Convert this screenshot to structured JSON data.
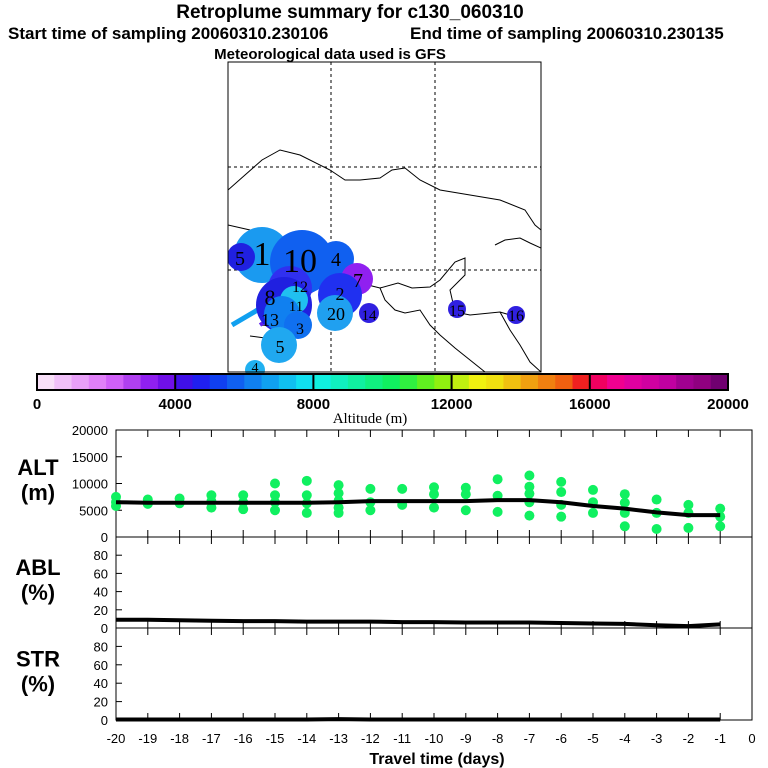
{
  "header": {
    "title": "Retroplume summary for c130_060310",
    "start": "Start time of sampling 20060310.230106",
    "end": "End time of sampling 20060310.230135",
    "met": "Meteorological data used is GFS"
  },
  "map": {
    "plumes": [
      {
        "label": "1",
        "color": "#1a9af0"
      },
      {
        "label": "5",
        "color": "#2020e0"
      },
      {
        "label": "10",
        "color": "#1060f0"
      },
      {
        "label": "4",
        "color": "#1060f0"
      },
      {
        "label": "7",
        "color": "#9020f0"
      },
      {
        "label": "12",
        "color": "#3030f0"
      },
      {
        "label": "8",
        "color": "#2020e0"
      },
      {
        "label": "2",
        "color": "#2030f0"
      },
      {
        "label": "20",
        "color": "#20a0f0"
      },
      {
        "label": "14",
        "color": "#3020e0"
      },
      {
        "label": "11",
        "color": "#20c0f0"
      },
      {
        "label": "13",
        "color": "#1080f0"
      },
      {
        "label": "3",
        "color": "#1070f0"
      },
      {
        "label": "5",
        "color": "#20a8f0"
      },
      {
        "label": "4",
        "color": "#20b0f0"
      },
      {
        "label": "15",
        "color": "#3020e0"
      },
      {
        "label": "16",
        "color": "#3020e0"
      }
    ]
  },
  "colorbar": {
    "title": "Altitude (m)",
    "ticks": [
      "0",
      "4000",
      "8000",
      "12000",
      "16000",
      "20000"
    ],
    "colors": [
      "#f8e0f8",
      "#f0c0f8",
      "#e8a0f8",
      "#e080f8",
      "#d060f8",
      "#b040f0",
      "#9020f0",
      "#7010e8",
      "#4010e8",
      "#2020f0",
      "#1040f0",
      "#1060f0",
      "#1080f0",
      "#10a0f0",
      "#10c0f0",
      "#10e0f0",
      "#10f0e0",
      "#10f0c0",
      "#10f0a0",
      "#10f080",
      "#10f060",
      "#30f040",
      "#60f020",
      "#90f010",
      "#c0f010",
      "#f0f010",
      "#f0e010",
      "#f0c010",
      "#f0a010",
      "#f08010",
      "#f06010",
      "#f02020",
      "#f00060",
      "#f00090",
      "#e000a0",
      "#d000a0",
      "#c000a0",
      "#a00090",
      "#900080",
      "#700070"
    ]
  },
  "chart_data": [
    {
      "type": "line",
      "name": "ALT",
      "ylabel": "ALT\n(m)",
      "ylabel_top": "ALT",
      "ylabel_bottom": "(m)",
      "ylim": [
        0,
        20000
      ],
      "yticks": [
        "0",
        "5000",
        "10000",
        "15000",
        "20000"
      ],
      "x": [
        -20,
        -19,
        -18,
        -17,
        -16,
        -15,
        -14,
        -13,
        -12,
        -11,
        -10,
        -9,
        -8,
        -7,
        -6,
        -5,
        -4,
        -3,
        -2,
        -1
      ],
      "values": [
        6500,
        6400,
        6400,
        6400,
        6400,
        6400,
        6400,
        6500,
        6700,
        6700,
        6700,
        6700,
        6900,
        6900,
        6500,
        5800,
        5300,
        4600,
        4100,
        4100
      ],
      "points": [
        [
          -20,
          7500
        ],
        [
          -20,
          6500
        ],
        [
          -20,
          5800
        ],
        [
          -19,
          7000
        ],
        [
          -19,
          6200
        ],
        [
          -18,
          7200
        ],
        [
          -18,
          6300
        ],
        [
          -17,
          7800
        ],
        [
          -17,
          6700
        ],
        [
          -17,
          5500
        ],
        [
          -16,
          7800
        ],
        [
          -16,
          6500
        ],
        [
          -16,
          5200
        ],
        [
          -15,
          10000
        ],
        [
          -15,
          7800
        ],
        [
          -15,
          6500
        ],
        [
          -15,
          5000
        ],
        [
          -14,
          10500
        ],
        [
          -14,
          7800
        ],
        [
          -14,
          6300
        ],
        [
          -14,
          4500
        ],
        [
          -13,
          9700
        ],
        [
          -13,
          8200
        ],
        [
          -13,
          6800
        ],
        [
          -13,
          5500
        ],
        [
          -13,
          4500
        ],
        [
          -12,
          9000
        ],
        [
          -12,
          6500
        ],
        [
          -12,
          5000
        ],
        [
          -11,
          9000
        ],
        [
          -11,
          6000
        ],
        [
          -10,
          9300
        ],
        [
          -10,
          8000
        ],
        [
          -10,
          5500
        ],
        [
          -9,
          9200
        ],
        [
          -9,
          8000
        ],
        [
          -9,
          5000
        ],
        [
          -8,
          10800
        ],
        [
          -8,
          7700
        ],
        [
          -8,
          4700
        ],
        [
          -7,
          11500
        ],
        [
          -7,
          9400
        ],
        [
          -7,
          8100
        ],
        [
          -7,
          6500
        ],
        [
          -7,
          4000
        ],
        [
          -6,
          10300
        ],
        [
          -6,
          8400
        ],
        [
          -6,
          6000
        ],
        [
          -6,
          3800
        ],
        [
          -5,
          8800
        ],
        [
          -5,
          6500
        ],
        [
          -5,
          4500
        ],
        [
          -4,
          8000
        ],
        [
          -4,
          6400
        ],
        [
          -4,
          4500
        ],
        [
          -4,
          2000
        ],
        [
          -3,
          7000
        ],
        [
          -3,
          4500
        ],
        [
          -3,
          1500
        ],
        [
          -2,
          6000
        ],
        [
          -2,
          4500
        ],
        [
          -2,
          1700
        ],
        [
          -1,
          5300
        ],
        [
          -1,
          3800
        ],
        [
          -1,
          2000
        ]
      ]
    },
    {
      "type": "line",
      "name": "ABL",
      "ylabel_top": "ABL",
      "ylabel_bottom": "(%)",
      "ylim": [
        0,
        100
      ],
      "yticks": [
        "0",
        "20",
        "40",
        "60",
        "80"
      ],
      "x": [
        -20,
        -19,
        -18,
        -17,
        -16,
        -15,
        -14,
        -13,
        -12,
        -11,
        -10,
        -9,
        -8,
        -7,
        -6,
        -5,
        -4,
        -3,
        -2,
        -1
      ],
      "values": [
        9,
        9,
        8.5,
        8,
        7.5,
        7.5,
        7,
        7,
        7,
        6.5,
        6.5,
        6,
        6,
        6,
        5.5,
        5,
        4.5,
        3,
        2,
        4
      ]
    },
    {
      "type": "line",
      "name": "STR",
      "ylabel_top": "STR",
      "ylabel_bottom": "(%)",
      "ylim": [
        0,
        100
      ],
      "yticks": [
        "0",
        "20",
        "40",
        "60",
        "80"
      ],
      "x": [
        -20,
        -19,
        -18,
        -17,
        -16,
        -15,
        -14,
        -13,
        -12,
        -11,
        -10,
        -9,
        -8,
        -7,
        -6,
        -5,
        -4,
        -3,
        -2,
        -1
      ],
      "values": [
        0.5,
        0.5,
        0.5,
        0.5,
        0.5,
        0.5,
        0.5,
        1,
        0.5,
        0.5,
        0.5,
        0.5,
        0.5,
        0.5,
        0.5,
        0.5,
        0.5,
        0.5,
        0.5,
        0.5
      ]
    }
  ],
  "xaxis": {
    "label": "Travel time (days)",
    "ticks": [
      "-20",
      "-19",
      "-18",
      "-17",
      "-16",
      "-15",
      "-14",
      "-13",
      "-12",
      "-11",
      "-10",
      "-9",
      "-8",
      "-7",
      "-6",
      "-5",
      "-4",
      "-3",
      "-2",
      "-1",
      "0"
    ]
  }
}
